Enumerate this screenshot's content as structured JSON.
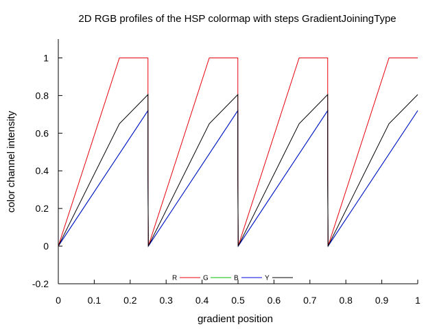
{
  "chart_data": {
    "type": "line",
    "title": "2D RGB profiles of the HSP colormap with steps GradientJoiningType",
    "xlabel": "gradient position",
    "ylabel": "color channel intensity",
    "xlim": [
      0,
      1
    ],
    "ylim": [
      -0.2,
      1.1
    ],
    "xticks": [
      0,
      0.1,
      0.2,
      0.3,
      0.4,
      0.5,
      0.6,
      0.7,
      0.8,
      0.9,
      1
    ],
    "xtick_labels": [
      "0",
      "0.1",
      "0.2",
      "0.3",
      "0.4",
      "0.5",
      "0.6",
      "0.7",
      "0.8",
      "0.9",
      "1"
    ],
    "yticks": [
      -0.2,
      0,
      0.2,
      0.4,
      0.6,
      0.8,
      1
    ],
    "ytick_labels": [
      "-0.2",
      "0",
      "0.2",
      "0.4",
      "0.6",
      "0.8",
      "1"
    ],
    "grid": false,
    "legend_position": "bottom-center",
    "series": [
      {
        "name": "R",
        "color": "#e8000b",
        "x": [
          0,
          0.17,
          0.2495,
          0.2495,
          0.2495,
          0.2505,
          0.42,
          0.4995,
          0.4995,
          0.4995,
          0.5005,
          0.67,
          0.7495,
          0.7495,
          0.7495,
          0.7505,
          0.92,
          1.0
        ],
        "y": [
          0,
          1,
          1,
          0.5,
          0.42,
          0,
          1,
          1,
          0.5,
          0.42,
          0,
          1,
          1,
          0.5,
          0.42,
          0,
          1,
          1
        ]
      },
      {
        "name": "G",
        "color": "#00c000",
        "x": [
          0,
          0.2495,
          0.2495,
          0.2505,
          0.4995,
          0.4995,
          0.5005,
          0.7495,
          0.7495,
          0.7505,
          1.0
        ],
        "y": [
          0,
          0.72,
          0.37,
          0,
          0.72,
          0.37,
          0,
          0.72,
          0.37,
          0,
          0.72
        ]
      },
      {
        "name": "B",
        "color": "#0000e0",
        "x": [
          0,
          0.2495,
          0.2495,
          0.2505,
          0.4995,
          0.4995,
          0.5005,
          0.7495,
          0.7495,
          0.7505,
          1.0
        ],
        "y": [
          0,
          0.72,
          0.36,
          0,
          0.72,
          0.36,
          0,
          0.72,
          0.36,
          0,
          0.72
        ]
      },
      {
        "name": "Y",
        "color": "#000000",
        "x": [
          0,
          0.17,
          0.2495,
          0.2495,
          0.2505,
          0.42,
          0.4995,
          0.4995,
          0.5005,
          0.67,
          0.7495,
          0.7495,
          0.7505,
          0.92,
          1.0
        ],
        "y": [
          0,
          0.65,
          0.805,
          0.4,
          0,
          0.65,
          0.805,
          0.4,
          0,
          0.65,
          0.805,
          0.4,
          0,
          0.65,
          0.805
        ]
      }
    ]
  }
}
